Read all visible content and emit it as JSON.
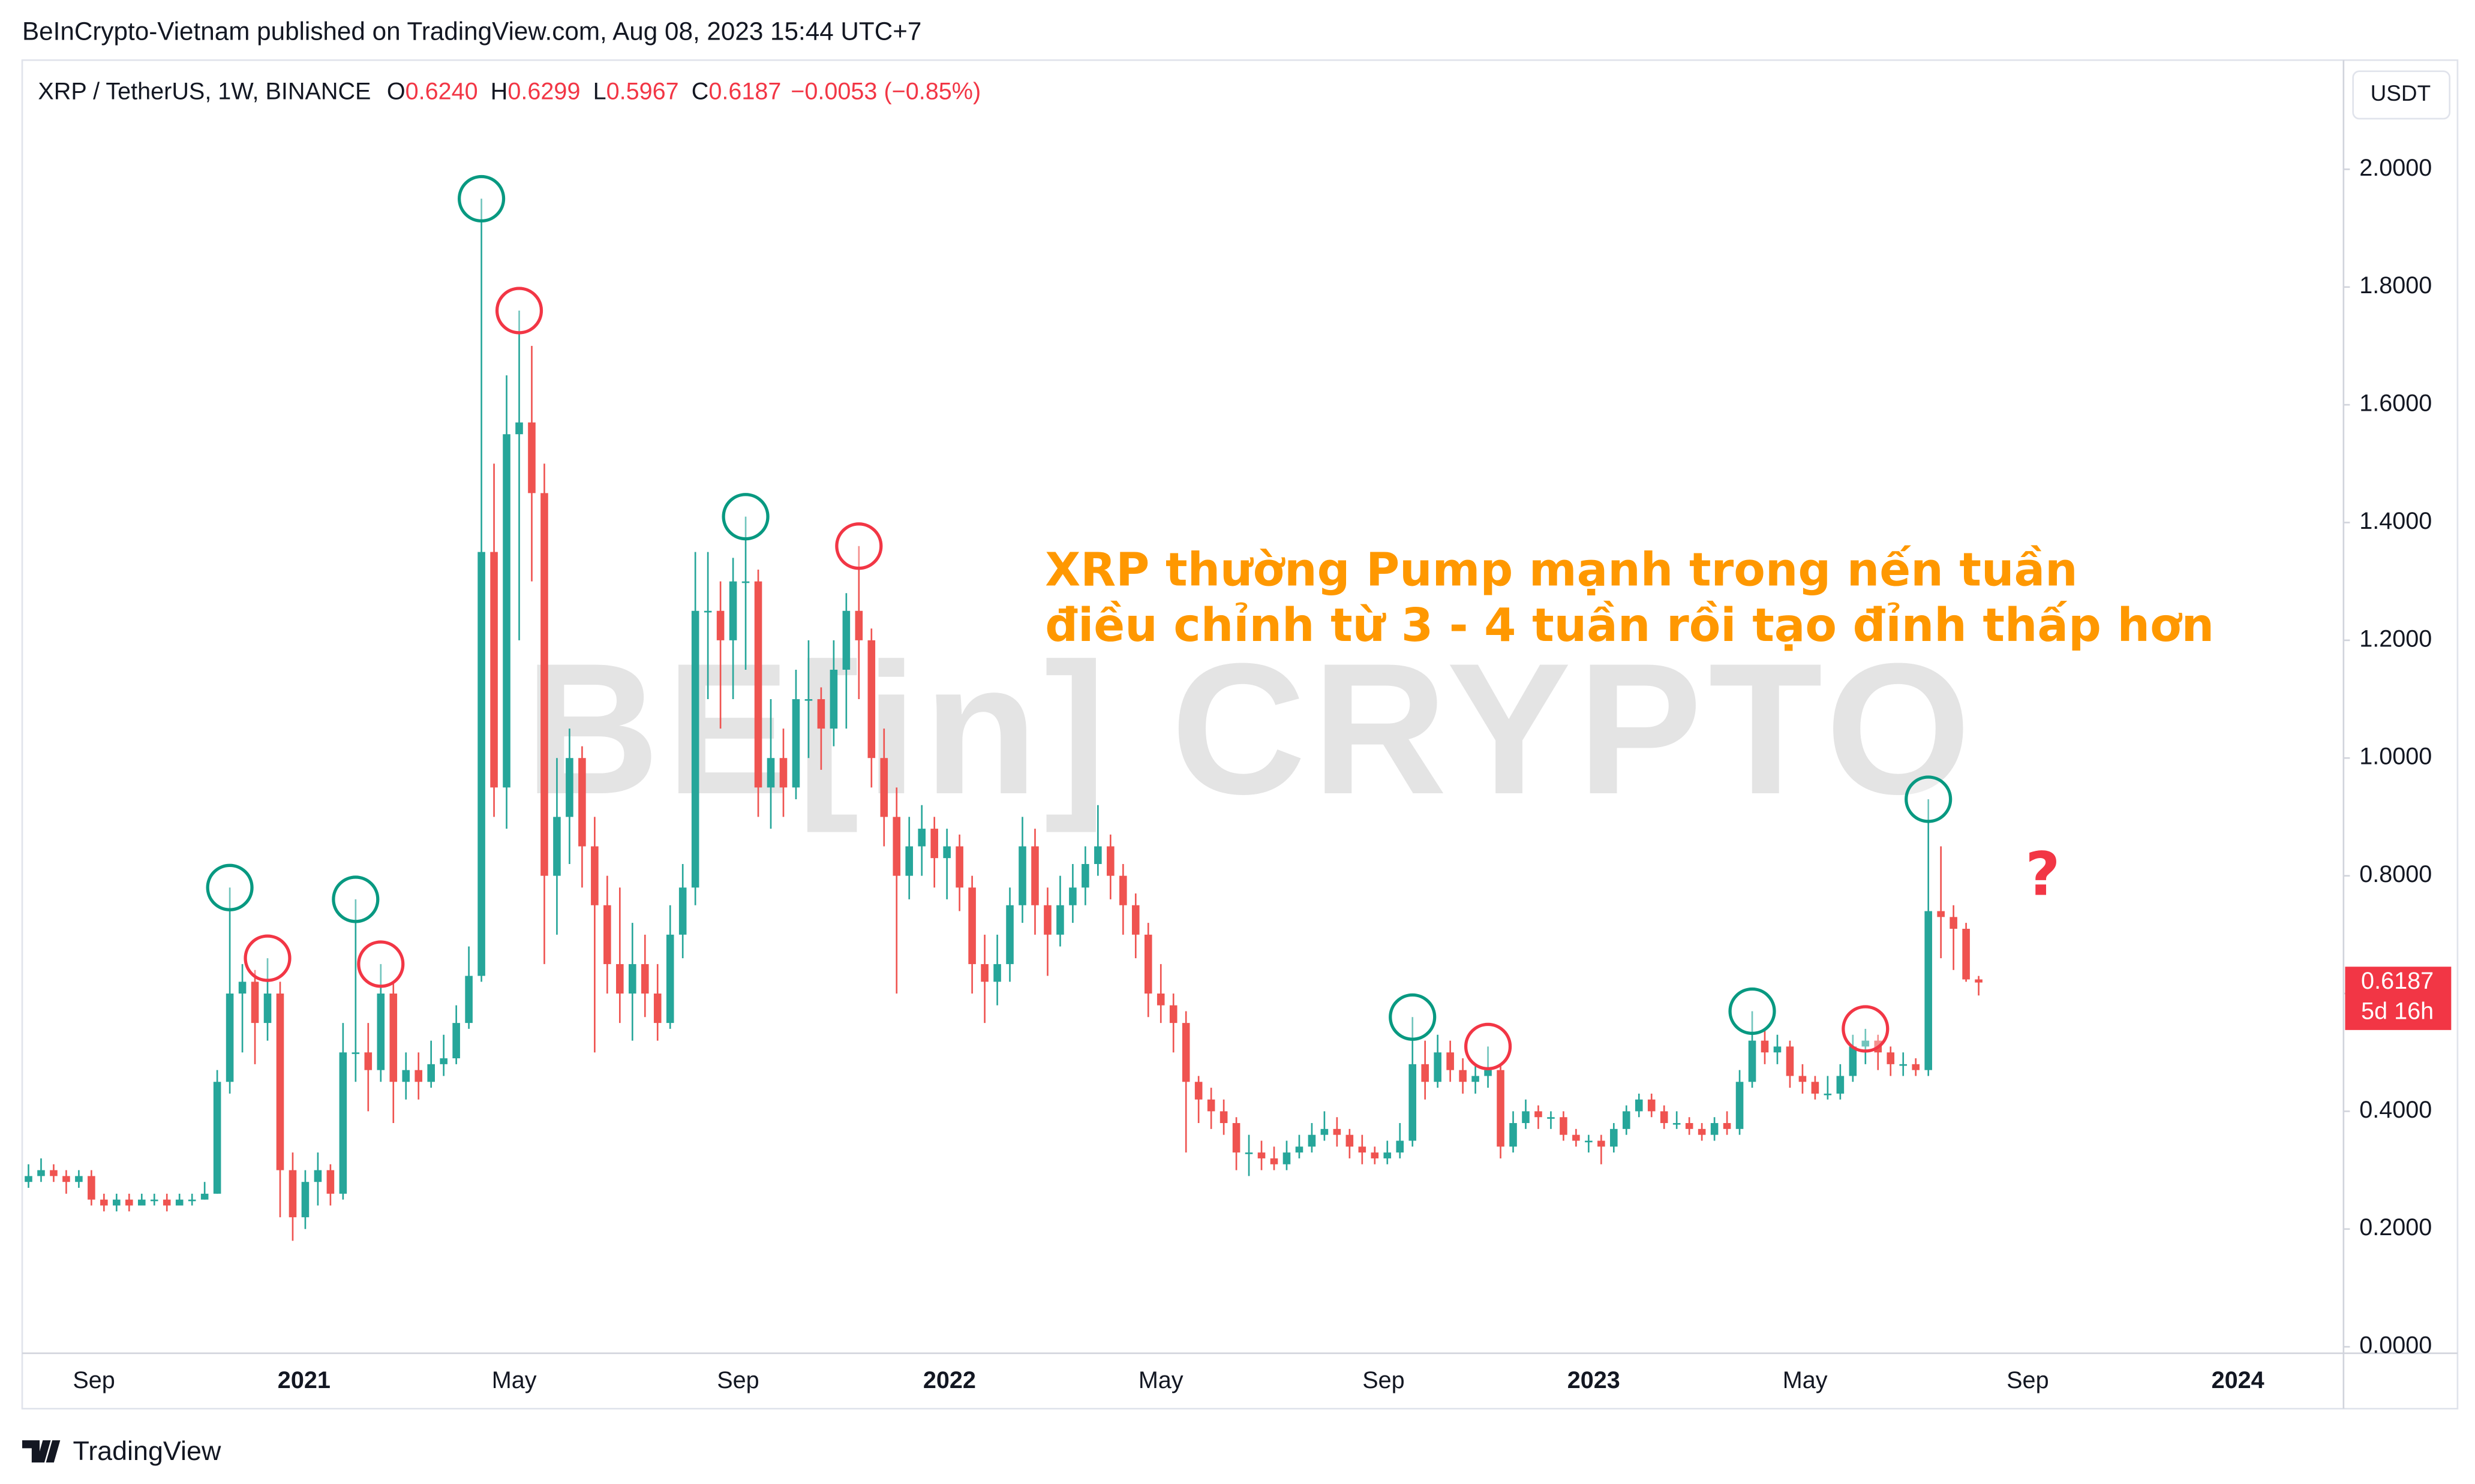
{
  "page_header": "BeInCrypto-Vietnam published on TradingView.com, Aug 08, 2023 15:44 UTC+7",
  "footer": "TradingView",
  "chart_data": {
    "type": "candlestick",
    "symbol": "XRP / TetherUS, 1W, BINANCE",
    "legend_values": [
      {
        "key": "O",
        "value": "0.6240"
      },
      {
        "key": "H",
        "value": "0.6299"
      },
      {
        "key": "L",
        "value": "0.5967"
      },
      {
        "key": "C",
        "value": "0.6187"
      }
    ],
    "change": "−0.0053 (−0.85%)",
    "currency_button": "USDT",
    "price_tag": "0.6187",
    "countdown": "5d 16h",
    "watermark": "BE[in] CRYPTO",
    "annotation": [
      "XRP thường Pump mạnh trong nến tuần",
      "điều chỉnh từ 3 - 4 tuần rồi tạo đỉnh thấp hơn"
    ],
    "question_mark": "?",
    "up_color": "#26a69a",
    "down_color": "#ef5350",
    "xlim": [
      -0.5,
      184
    ],
    "xticks": [
      {
        "value": 5.2,
        "label": "Sep"
      },
      {
        "value": 21.9,
        "label": "2021"
      },
      {
        "value": 38.6,
        "label": "May"
      },
      {
        "value": 56.4,
        "label": "Sep"
      },
      {
        "value": 73.2,
        "label": "2022"
      },
      {
        "value": 90.0,
        "label": "May"
      },
      {
        "value": 107.7,
        "label": "Sep"
      },
      {
        "value": 124.4,
        "label": "2023"
      },
      {
        "value": 141.2,
        "label": "May"
      },
      {
        "value": 158.9,
        "label": "Sep"
      },
      {
        "value": 175.6,
        "label": "2024"
      }
    ],
    "ylim": [
      -0.011,
      2.18
    ],
    "yticks": [
      {
        "value": 0,
        "label": "0.0000"
      },
      {
        "value": 0.2,
        "label": "0.2000"
      },
      {
        "value": 0.4,
        "label": "0.4000"
      },
      {
        "value": 0.6,
        "label": "0.6000"
      },
      {
        "value": 0.8,
        "label": "0.8000"
      },
      {
        "value": 1.0,
        "label": "1.0000"
      },
      {
        "value": 1.2,
        "label": "1.2000"
      },
      {
        "value": 1.4,
        "label": "1.4000"
      },
      {
        "value": 1.6,
        "label": "1.6000"
      },
      {
        "value": 1.8,
        "label": "1.8000"
      },
      {
        "value": 2.0,
        "label": "2.0000"
      }
    ],
    "ohlc": [
      [
        0.28,
        0.31,
        0.27,
        0.29
      ],
      [
        0.29,
        0.32,
        0.28,
        0.3
      ],
      [
        0.3,
        0.31,
        0.28,
        0.29
      ],
      [
        0.29,
        0.3,
        0.26,
        0.28
      ],
      [
        0.28,
        0.3,
        0.27,
        0.29
      ],
      [
        0.29,
        0.3,
        0.24,
        0.25
      ],
      [
        0.25,
        0.26,
        0.23,
        0.24
      ],
      [
        0.24,
        0.26,
        0.23,
        0.25
      ],
      [
        0.25,
        0.26,
        0.23,
        0.24
      ],
      [
        0.24,
        0.26,
        0.24,
        0.25
      ],
      [
        0.25,
        0.26,
        0.24,
        0.25
      ],
      [
        0.25,
        0.26,
        0.23,
        0.24
      ],
      [
        0.24,
        0.26,
        0.24,
        0.25
      ],
      [
        0.25,
        0.26,
        0.24,
        0.25
      ],
      [
        0.25,
        0.28,
        0.25,
        0.26
      ],
      [
        0.26,
        0.47,
        0.26,
        0.45
      ],
      [
        0.45,
        0.78,
        0.43,
        0.6
      ],
      [
        0.6,
        0.65,
        0.5,
        0.62
      ],
      [
        0.62,
        0.64,
        0.48,
        0.55
      ],
      [
        0.55,
        0.66,
        0.52,
        0.6
      ],
      [
        0.6,
        0.62,
        0.22,
        0.3
      ],
      [
        0.3,
        0.33,
        0.18,
        0.22
      ],
      [
        0.22,
        0.3,
        0.2,
        0.28
      ],
      [
        0.28,
        0.33,
        0.24,
        0.3
      ],
      [
        0.3,
        0.31,
        0.24,
        0.26
      ],
      [
        0.26,
        0.55,
        0.25,
        0.5
      ],
      [
        0.5,
        0.76,
        0.45,
        0.5
      ],
      [
        0.5,
        0.55,
        0.4,
        0.47
      ],
      [
        0.47,
        0.65,
        0.45,
        0.6
      ],
      [
        0.6,
        0.62,
        0.38,
        0.45
      ],
      [
        0.45,
        0.5,
        0.42,
        0.47
      ],
      [
        0.47,
        0.5,
        0.42,
        0.45
      ],
      [
        0.45,
        0.52,
        0.44,
        0.48
      ],
      [
        0.48,
        0.53,
        0.46,
        0.49
      ],
      [
        0.49,
        0.58,
        0.48,
        0.55
      ],
      [
        0.55,
        0.68,
        0.54,
        0.63
      ],
      [
        0.63,
        1.95,
        0.62,
        1.35
      ],
      [
        1.35,
        1.5,
        0.9,
        0.95
      ],
      [
        0.95,
        1.65,
        0.88,
        1.55
      ],
      [
        1.55,
        1.76,
        1.2,
        1.57
      ],
      [
        1.57,
        1.7,
        1.3,
        1.45
      ],
      [
        1.45,
        1.5,
        0.65,
        0.8
      ],
      [
        0.8,
        1.0,
        0.7,
        0.9
      ],
      [
        0.9,
        1.05,
        0.82,
        1.0
      ],
      [
        1.0,
        1.02,
        0.78,
        0.85
      ],
      [
        0.85,
        0.9,
        0.5,
        0.75
      ],
      [
        0.75,
        0.8,
        0.6,
        0.65
      ],
      [
        0.65,
        0.78,
        0.55,
        0.6
      ],
      [
        0.6,
        0.72,
        0.52,
        0.65
      ],
      [
        0.65,
        0.7,
        0.56,
        0.6
      ],
      [
        0.6,
        0.65,
        0.52,
        0.55
      ],
      [
        0.55,
        0.75,
        0.54,
        0.7
      ],
      [
        0.7,
        0.82,
        0.66,
        0.78
      ],
      [
        0.78,
        1.35,
        0.75,
        1.25
      ],
      [
        1.25,
        1.35,
        1.1,
        1.25
      ],
      [
        1.25,
        1.3,
        1.05,
        1.2
      ],
      [
        1.2,
        1.34,
        1.1,
        1.3
      ],
      [
        1.3,
        1.41,
        1.15,
        1.3
      ],
      [
        1.3,
        1.32,
        0.9,
        0.95
      ],
      [
        0.95,
        1.1,
        0.88,
        1.0
      ],
      [
        1.0,
        1.05,
        0.9,
        0.95
      ],
      [
        0.95,
        1.15,
        0.93,
        1.1
      ],
      [
        1.1,
        1.2,
        1.0,
        1.1
      ],
      [
        1.1,
        1.12,
        0.98,
        1.05
      ],
      [
        1.05,
        1.2,
        1.02,
        1.15
      ],
      [
        1.15,
        1.28,
        1.05,
        1.25
      ],
      [
        1.25,
        1.36,
        1.1,
        1.2
      ],
      [
        1.2,
        1.22,
        0.95,
        1.0
      ],
      [
        1.0,
        1.05,
        0.85,
        0.9
      ],
      [
        0.9,
        0.95,
        0.6,
        0.8
      ],
      [
        0.8,
        0.9,
        0.76,
        0.85
      ],
      [
        0.85,
        0.92,
        0.8,
        0.88
      ],
      [
        0.88,
        0.9,
        0.78,
        0.83
      ],
      [
        0.83,
        0.88,
        0.76,
        0.85
      ],
      [
        0.85,
        0.87,
        0.74,
        0.78
      ],
      [
        0.78,
        0.8,
        0.6,
        0.65
      ],
      [
        0.65,
        0.7,
        0.55,
        0.62
      ],
      [
        0.62,
        0.7,
        0.58,
        0.65
      ],
      [
        0.65,
        0.78,
        0.62,
        0.75
      ],
      [
        0.75,
        0.9,
        0.72,
        0.85
      ],
      [
        0.85,
        0.88,
        0.7,
        0.75
      ],
      [
        0.75,
        0.78,
        0.63,
        0.7
      ],
      [
        0.7,
        0.8,
        0.68,
        0.75
      ],
      [
        0.75,
        0.82,
        0.72,
        0.78
      ],
      [
        0.78,
        0.85,
        0.75,
        0.82
      ],
      [
        0.82,
        0.92,
        0.8,
        0.85
      ],
      [
        0.85,
        0.87,
        0.76,
        0.8
      ],
      [
        0.8,
        0.82,
        0.7,
        0.75
      ],
      [
        0.75,
        0.77,
        0.66,
        0.7
      ],
      [
        0.7,
        0.72,
        0.56,
        0.6
      ],
      [
        0.6,
        0.65,
        0.55,
        0.58
      ],
      [
        0.58,
        0.6,
        0.5,
        0.55
      ],
      [
        0.55,
        0.57,
        0.33,
        0.45
      ],
      [
        0.45,
        0.46,
        0.38,
        0.42
      ],
      [
        0.42,
        0.44,
        0.37,
        0.4
      ],
      [
        0.4,
        0.42,
        0.36,
        0.38
      ],
      [
        0.38,
        0.39,
        0.3,
        0.33
      ],
      [
        0.33,
        0.36,
        0.29,
        0.33
      ],
      [
        0.33,
        0.35,
        0.3,
        0.32
      ],
      [
        0.32,
        0.34,
        0.3,
        0.31
      ],
      [
        0.31,
        0.35,
        0.3,
        0.33
      ],
      [
        0.33,
        0.36,
        0.32,
        0.34
      ],
      [
        0.34,
        0.38,
        0.33,
        0.36
      ],
      [
        0.36,
        0.4,
        0.35,
        0.37
      ],
      [
        0.37,
        0.39,
        0.34,
        0.36
      ],
      [
        0.36,
        0.37,
        0.32,
        0.34
      ],
      [
        0.34,
        0.36,
        0.31,
        0.33
      ],
      [
        0.33,
        0.34,
        0.31,
        0.32
      ],
      [
        0.32,
        0.35,
        0.31,
        0.33
      ],
      [
        0.33,
        0.38,
        0.32,
        0.35
      ],
      [
        0.35,
        0.56,
        0.34,
        0.48
      ],
      [
        0.48,
        0.52,
        0.42,
        0.45
      ],
      [
        0.45,
        0.53,
        0.44,
        0.5
      ],
      [
        0.5,
        0.52,
        0.45,
        0.47
      ],
      [
        0.47,
        0.49,
        0.43,
        0.45
      ],
      [
        0.45,
        0.48,
        0.43,
        0.46
      ],
      [
        0.46,
        0.51,
        0.44,
        0.47
      ],
      [
        0.47,
        0.48,
        0.32,
        0.34
      ],
      [
        0.34,
        0.4,
        0.33,
        0.38
      ],
      [
        0.38,
        0.42,
        0.37,
        0.4
      ],
      [
        0.4,
        0.41,
        0.37,
        0.39
      ],
      [
        0.39,
        0.4,
        0.37,
        0.39
      ],
      [
        0.39,
        0.4,
        0.35,
        0.36
      ],
      [
        0.36,
        0.37,
        0.34,
        0.35
      ],
      [
        0.35,
        0.36,
        0.33,
        0.35
      ],
      [
        0.35,
        0.36,
        0.31,
        0.34
      ],
      [
        0.34,
        0.38,
        0.33,
        0.37
      ],
      [
        0.37,
        0.41,
        0.36,
        0.4
      ],
      [
        0.4,
        0.43,
        0.39,
        0.42
      ],
      [
        0.42,
        0.43,
        0.39,
        0.4
      ],
      [
        0.4,
        0.41,
        0.37,
        0.38
      ],
      [
        0.38,
        0.4,
        0.37,
        0.38
      ],
      [
        0.38,
        0.39,
        0.36,
        0.37
      ],
      [
        0.37,
        0.38,
        0.35,
        0.36
      ],
      [
        0.36,
        0.39,
        0.35,
        0.38
      ],
      [
        0.38,
        0.4,
        0.36,
        0.37
      ],
      [
        0.37,
        0.47,
        0.36,
        0.45
      ],
      [
        0.45,
        0.57,
        0.44,
        0.52
      ],
      [
        0.52,
        0.54,
        0.48,
        0.5
      ],
      [
        0.5,
        0.53,
        0.48,
        0.51
      ],
      [
        0.51,
        0.52,
        0.44,
        0.46
      ],
      [
        0.46,
        0.48,
        0.43,
        0.45
      ],
      [
        0.45,
        0.46,
        0.42,
        0.43
      ],
      [
        0.43,
        0.46,
        0.42,
        0.43
      ],
      [
        0.43,
        0.48,
        0.42,
        0.46
      ],
      [
        0.46,
        0.53,
        0.45,
        0.51
      ],
      [
        0.51,
        0.54,
        0.48,
        0.52
      ],
      [
        0.52,
        0.53,
        0.47,
        0.5
      ],
      [
        0.5,
        0.51,
        0.46,
        0.48
      ],
      [
        0.48,
        0.5,
        0.46,
        0.48
      ],
      [
        0.48,
        0.49,
        0.46,
        0.47
      ],
      [
        0.47,
        0.93,
        0.46,
        0.74
      ],
      [
        0.74,
        0.85,
        0.66,
        0.73
      ],
      [
        0.73,
        0.75,
        0.64,
        0.71
      ],
      [
        0.71,
        0.72,
        0.62,
        0.624
      ],
      [
        0.624,
        0.6299,
        0.5967,
        0.6187
      ]
    ],
    "peak_markers": [
      {
        "x": 16,
        "color": "#089981"
      },
      {
        "x": 19,
        "color": "#f23645"
      },
      {
        "x": 26,
        "color": "#089981"
      },
      {
        "x": 28,
        "color": "#f23645"
      },
      {
        "x": 36,
        "color": "#089981"
      },
      {
        "x": 39,
        "color": "#f23645"
      },
      {
        "x": 57,
        "color": "#089981"
      },
      {
        "x": 66,
        "color": "#f23645"
      },
      {
        "x": 110,
        "color": "#089981"
      },
      {
        "x": 116,
        "color": "#f23645"
      },
      {
        "x": 137,
        "color": "#089981"
      },
      {
        "x": 146,
        "color": "#f23645"
      },
      {
        "x": 151,
        "color": "#089981"
      }
    ]
  }
}
